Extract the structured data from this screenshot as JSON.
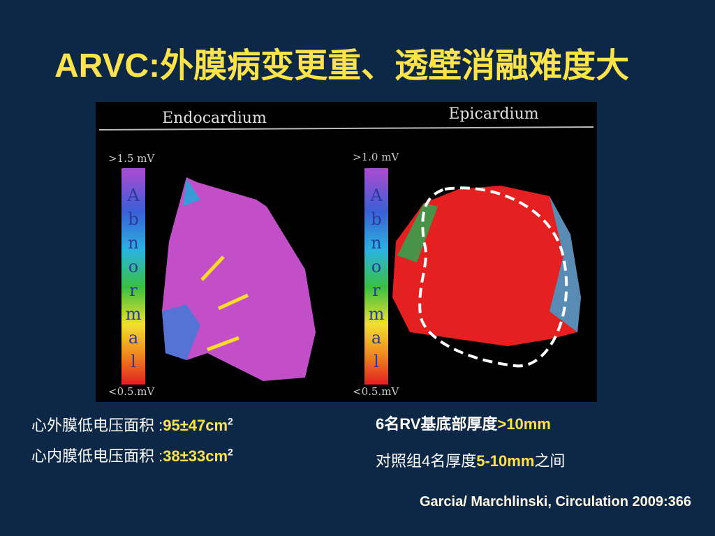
{
  "title": "ARVC:外膜病变更重、透壁消融难度大",
  "figure": {
    "left_label": "Endocardium",
    "right_label": "Epicardium",
    "left_scale": {
      "top": ">1.5 mV",
      "bottom": "<0.5.mV"
    },
    "right_scale": {
      "top": ">1.0 mV",
      "bottom": "<0.5.mV"
    },
    "bar_letters": [
      "A",
      "b",
      "n",
      "o",
      "r",
      "m",
      "a",
      "l"
    ]
  },
  "stats": [
    {
      "label": "心外膜低电压面积 :",
      "value": "95±47cm",
      "sup": "2"
    },
    {
      "label": "心内膜低电压面积 :",
      "value": "38±33cm",
      "sup": "2"
    }
  ],
  "findings": [
    {
      "before": "6名RV基底部厚度",
      "value": ">10mm",
      "after": ""
    },
    {
      "before": "对照组4名厚度",
      "value": "5-10mm",
      "after": "之间"
    }
  ],
  "citation": "Garcia/ Marchlinski, Circulation 2009:366"
}
